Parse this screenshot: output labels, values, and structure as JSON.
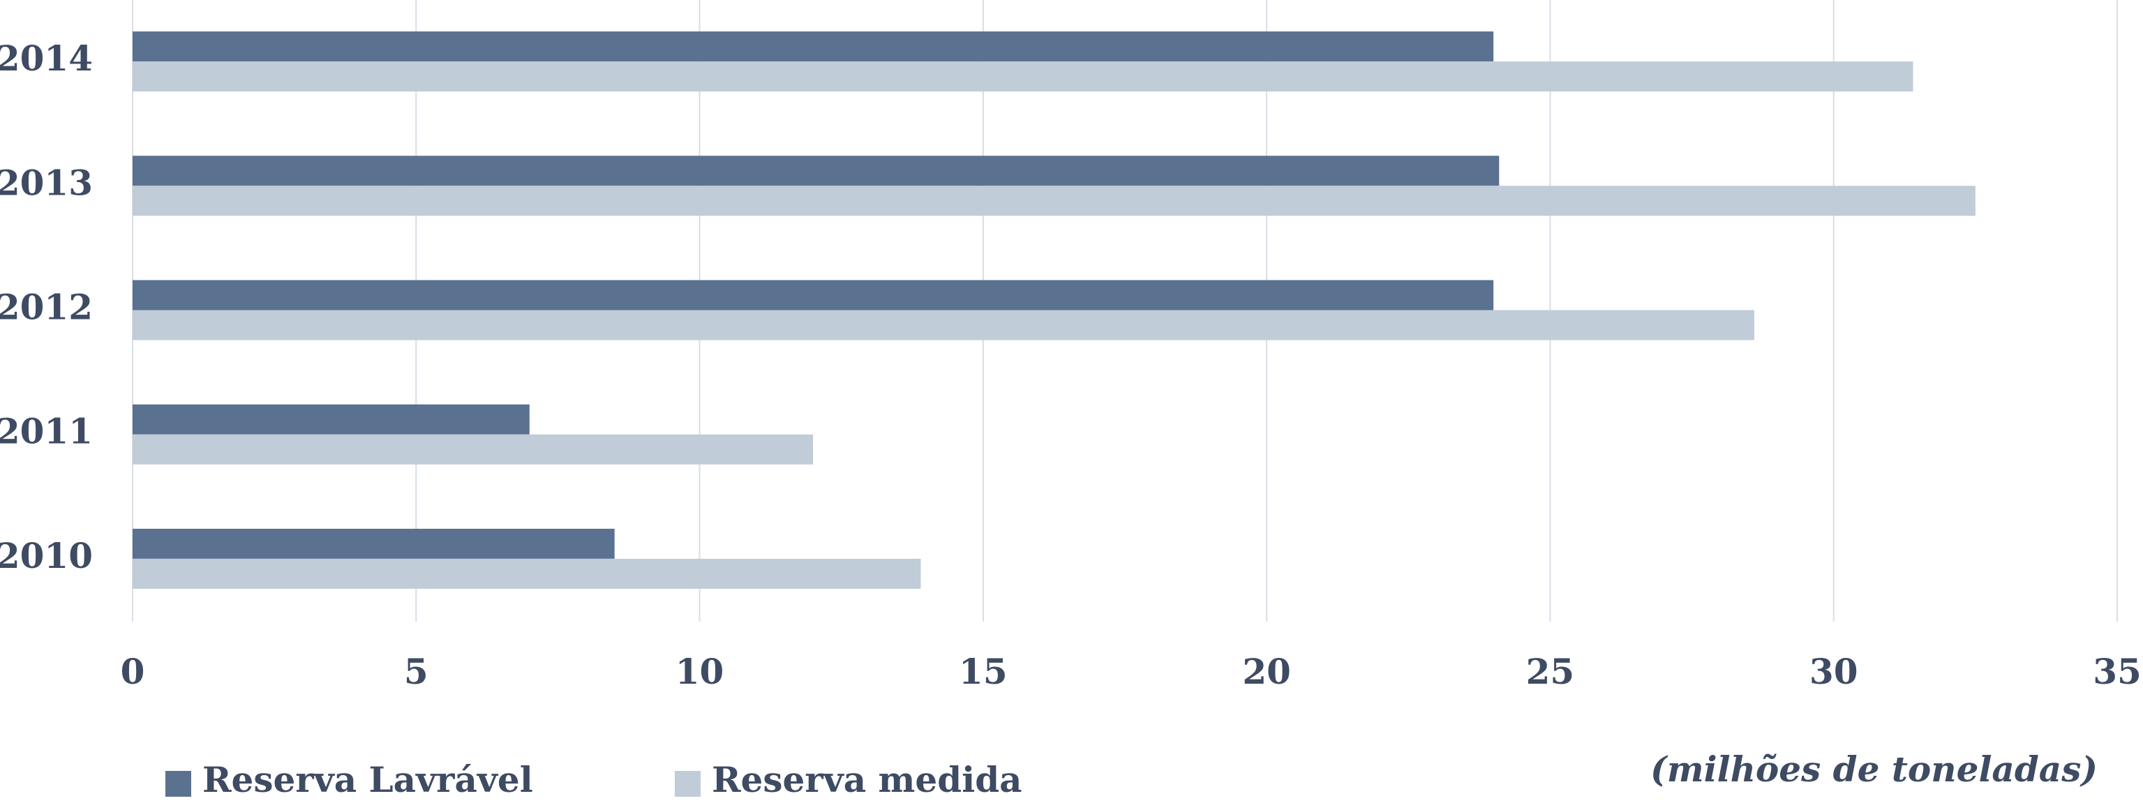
{
  "chart_data": {
    "type": "bar",
    "orientation": "horizontal",
    "categories": [
      "2014",
      "2013",
      "2012",
      "2011",
      "2010"
    ],
    "series": [
      {
        "name": "Reserva Lavrável",
        "color": "#5a7190",
        "values": [
          24.0,
          24.1,
          24.0,
          7.0,
          8.5
        ]
      },
      {
        "name": "Reserva medida",
        "color": "#c0ccd8",
        "values": [
          31.4,
          32.5,
          28.6,
          12.0,
          13.9
        ]
      }
    ],
    "x_label": "(milhões de toneladas)",
    "xlim": [
      0,
      35
    ],
    "xticks": [
      0,
      5,
      10,
      15,
      20,
      25,
      30,
      35
    ],
    "grid": true
  }
}
